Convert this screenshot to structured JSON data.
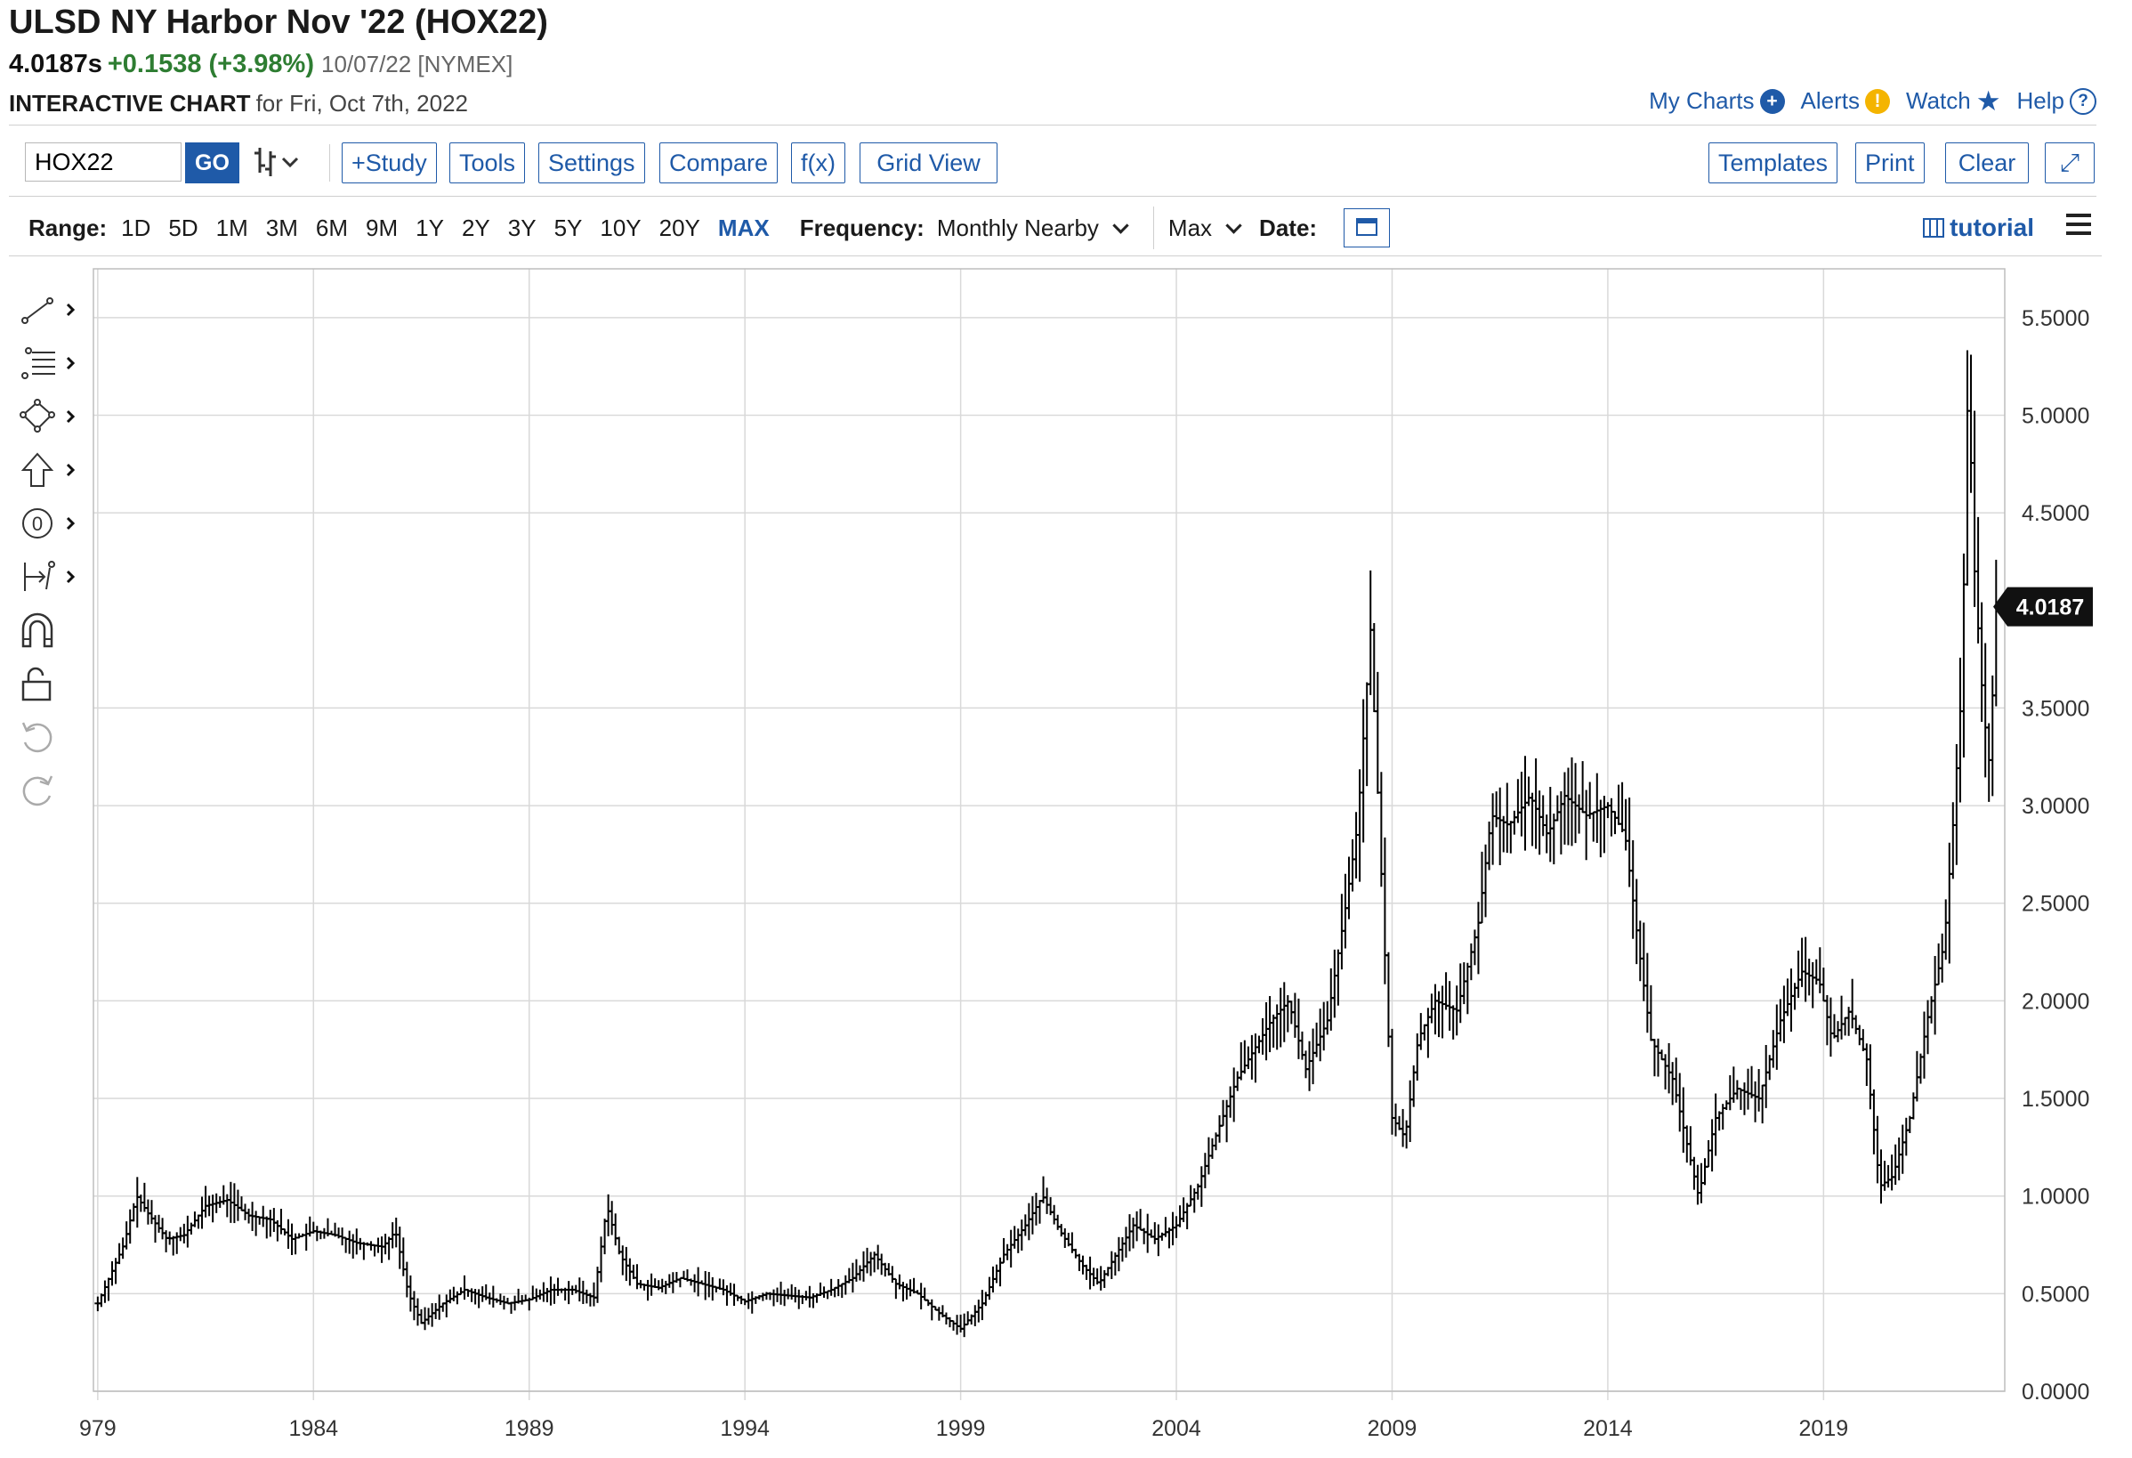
{
  "header": {
    "title": "ULSD NY Harbor Nov '22 (HOX22)",
    "price": "4.0187s",
    "change": "+0.1538 (+3.98%)",
    "date_exchange": "10/07/22 [NYMEX]",
    "chart_label": "INTERACTIVE CHART",
    "chart_for": "for Fri, Oct 7th, 2022"
  },
  "top_links": {
    "my_charts": "My Charts",
    "alerts": "Alerts",
    "watch": "Watch",
    "help": "Help"
  },
  "toolbar": {
    "symbol_value": "HOX22",
    "go": "GO",
    "study": "+Study",
    "tools": "Tools",
    "settings": "Settings",
    "compare": "Compare",
    "fx": "f(x)",
    "grid_view": "Grid View",
    "templates": "Templates",
    "print": "Print",
    "clear": "Clear"
  },
  "range_bar": {
    "label": "Range:",
    "options": [
      "1D",
      "5D",
      "1M",
      "3M",
      "6M",
      "9M",
      "1Y",
      "2Y",
      "3Y",
      "5Y",
      "10Y",
      "20Y",
      "MAX"
    ],
    "active": "MAX",
    "frequency_label": "Frequency:",
    "frequency_value": "Monthly Nearby",
    "period_value": "Max",
    "date_label": "Date:",
    "tutorial": "tutorial"
  },
  "colors": {
    "accent": "#1f5aa8",
    "positive": "#2e7d32",
    "bars": "#000000",
    "grid": "#d9d9d9"
  },
  "chart_data": {
    "type": "ohlc",
    "title": "",
    "xlabel": "",
    "ylabel": "",
    "x_ticks": [
      "979",
      "1984",
      "1989",
      "1994",
      "1999",
      "2004",
      "2009",
      "2014",
      "2019"
    ],
    "y_ticks": [
      "0.0000",
      "0.5000",
      "1.0000",
      "1.5000",
      "2.0000",
      "2.5000",
      "3.0000",
      "3.5000",
      "4.5000",
      "5.0000",
      "5.5000"
    ],
    "ylim": [
      0,
      5.75
    ],
    "xlim": [
      1978.9,
      2023.2
    ],
    "last_value": 4.0187,
    "last_value_label": "4.0187",
    "grid": true,
    "series": [
      {
        "points": [
          {
            "x": 1979.0,
            "y": 0.45
          },
          {
            "x": 1979.6,
            "y": 0.75
          },
          {
            "x": 1979.9,
            "y": 1.0
          },
          {
            "x": 1980.2,
            "y": 0.9
          },
          {
            "x": 1980.6,
            "y": 0.78
          },
          {
            "x": 1981.0,
            "y": 0.8
          },
          {
            "x": 1981.5,
            "y": 0.95
          },
          {
            "x": 1982.0,
            "y": 0.98
          },
          {
            "x": 1982.5,
            "y": 0.9
          },
          {
            "x": 1983.0,
            "y": 0.88
          },
          {
            "x": 1983.5,
            "y": 0.78
          },
          {
            "x": 1984.0,
            "y": 0.82
          },
          {
            "x": 1984.5,
            "y": 0.8
          },
          {
            "x": 1985.0,
            "y": 0.76
          },
          {
            "x": 1985.6,
            "y": 0.74
          },
          {
            "x": 1985.9,
            "y": 0.82
          },
          {
            "x": 1986.2,
            "y": 0.5
          },
          {
            "x": 1986.5,
            "y": 0.35
          },
          {
            "x": 1987.0,
            "y": 0.45
          },
          {
            "x": 1987.5,
            "y": 0.52
          },
          {
            "x": 1988.0,
            "y": 0.48
          },
          {
            "x": 1988.5,
            "y": 0.45
          },
          {
            "x": 1989.0,
            "y": 0.47
          },
          {
            "x": 1989.5,
            "y": 0.52
          },
          {
            "x": 1990.0,
            "y": 0.52
          },
          {
            "x": 1990.5,
            "y": 0.48
          },
          {
            "x": 1990.8,
            "y": 0.95
          },
          {
            "x": 1991.1,
            "y": 0.7
          },
          {
            "x": 1991.5,
            "y": 0.55
          },
          {
            "x": 1992.0,
            "y": 0.53
          },
          {
            "x": 1992.5,
            "y": 0.58
          },
          {
            "x": 1993.0,
            "y": 0.55
          },
          {
            "x": 1993.5,
            "y": 0.52
          },
          {
            "x": 1994.0,
            "y": 0.46
          },
          {
            "x": 1994.5,
            "y": 0.5
          },
          {
            "x": 1995.0,
            "y": 0.49
          },
          {
            "x": 1995.5,
            "y": 0.48
          },
          {
            "x": 1996.0,
            "y": 0.52
          },
          {
            "x": 1996.5,
            "y": 0.58
          },
          {
            "x": 1997.0,
            "y": 0.7
          },
          {
            "x": 1997.5,
            "y": 0.55
          },
          {
            "x": 1998.0,
            "y": 0.5
          },
          {
            "x": 1998.5,
            "y": 0.4
          },
          {
            "x": 1999.0,
            "y": 0.32
          },
          {
            "x": 1999.5,
            "y": 0.45
          },
          {
            "x": 2000.0,
            "y": 0.7
          },
          {
            "x": 2000.5,
            "y": 0.85
          },
          {
            "x": 2000.9,
            "y": 1.0
          },
          {
            "x": 2001.3,
            "y": 0.82
          },
          {
            "x": 2001.8,
            "y": 0.65
          },
          {
            "x": 2002.2,
            "y": 0.55
          },
          {
            "x": 2002.6,
            "y": 0.7
          },
          {
            "x": 2003.0,
            "y": 0.85
          },
          {
            "x": 2003.5,
            "y": 0.78
          },
          {
            "x": 2004.0,
            "y": 0.85
          },
          {
            "x": 2004.5,
            "y": 1.05
          },
          {
            "x": 2004.9,
            "y": 1.3
          },
          {
            "x": 2005.4,
            "y": 1.6
          },
          {
            "x": 2005.8,
            "y": 1.75
          },
          {
            "x": 2006.2,
            "y": 1.9
          },
          {
            "x": 2006.6,
            "y": 2.0
          },
          {
            "x": 2007.0,
            "y": 1.65
          },
          {
            "x": 2007.5,
            "y": 1.9
          },
          {
            "x": 2007.9,
            "y": 2.45
          },
          {
            "x": 2008.2,
            "y": 2.9
          },
          {
            "x": 2008.5,
            "y": 3.9
          },
          {
            "x": 2008.8,
            "y": 2.4
          },
          {
            "x": 2009.0,
            "y": 1.4
          },
          {
            "x": 2009.3,
            "y": 1.3
          },
          {
            "x": 2009.6,
            "y": 1.8
          },
          {
            "x": 2010.0,
            "y": 2.0
          },
          {
            "x": 2010.5,
            "y": 1.95
          },
          {
            "x": 2011.0,
            "y": 2.4
          },
          {
            "x": 2011.3,
            "y": 2.95
          },
          {
            "x": 2011.7,
            "y": 2.9
          },
          {
            "x": 2012.2,
            "y": 3.05
          },
          {
            "x": 2012.6,
            "y": 2.85
          },
          {
            "x": 2013.0,
            "y": 3.05
          },
          {
            "x": 2013.5,
            "y": 2.95
          },
          {
            "x": 2014.0,
            "y": 3.0
          },
          {
            "x": 2014.4,
            "y": 2.85
          },
          {
            "x": 2014.7,
            "y": 2.3
          },
          {
            "x": 2015.0,
            "y": 1.8
          },
          {
            "x": 2015.5,
            "y": 1.6
          },
          {
            "x": 2015.9,
            "y": 1.2
          },
          {
            "x": 2016.1,
            "y": 1.0
          },
          {
            "x": 2016.5,
            "y": 1.4
          },
          {
            "x": 2017.0,
            "y": 1.55
          },
          {
            "x": 2017.5,
            "y": 1.5
          },
          {
            "x": 2018.0,
            "y": 1.9
          },
          {
            "x": 2018.5,
            "y": 2.15
          },
          {
            "x": 2018.9,
            "y": 2.1
          },
          {
            "x": 2019.2,
            "y": 1.8
          },
          {
            "x": 2019.6,
            "y": 1.95
          },
          {
            "x": 2020.0,
            "y": 1.7
          },
          {
            "x": 2020.3,
            "y": 1.05
          },
          {
            "x": 2020.6,
            "y": 1.1
          },
          {
            "x": 2021.0,
            "y": 1.4
          },
          {
            "x": 2021.4,
            "y": 1.9
          },
          {
            "x": 2021.8,
            "y": 2.3
          },
          {
            "x": 2022.0,
            "y": 2.9
          },
          {
            "x": 2022.2,
            "y": 3.6
          },
          {
            "x": 2022.35,
            "y": 5.2
          },
          {
            "x": 2022.5,
            "y": 4.2
          },
          {
            "x": 2022.7,
            "y": 3.5
          },
          {
            "x": 2022.85,
            "y": 3.2
          },
          {
            "x": 2023.0,
            "y": 4.02
          }
        ]
      }
    ]
  }
}
